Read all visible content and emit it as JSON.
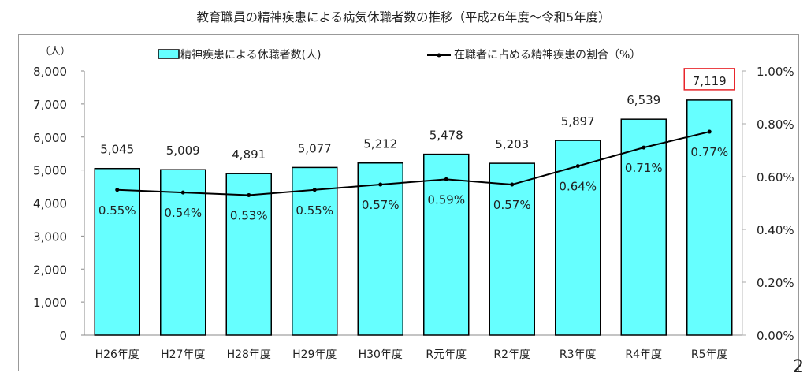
{
  "page_number": "2",
  "chart_data": {
    "type": "bar+line",
    "title": "教育職員の精神疾患による病気休職者数の推移（平成26年度～令和5年度）",
    "categories": [
      "H26年度",
      "H27年度",
      "H28年度",
      "H29年度",
      "H30年度",
      "R元年度",
      "R2年度",
      "R3年度",
      "R4年度",
      "R5年度"
    ],
    "series": [
      {
        "name": "精神疾患による休職者数(人)",
        "type": "bar",
        "axis": "left",
        "values": [
          5045,
          5009,
          4891,
          5077,
          5212,
          5478,
          5203,
          5897,
          6539,
          7119
        ],
        "labels": [
          "5,045",
          "5,009",
          "4,891",
          "5,077",
          "5,212",
          "5,478",
          "5,203",
          "5,897",
          "6,539",
          "7,119"
        ],
        "color": "#66FFFF",
        "highlight_index": 9,
        "highlight_color": "#E8252B"
      },
      {
        "name": "在職者に占める精神疾患の割合（%）",
        "type": "line",
        "axis": "right",
        "values": [
          0.55,
          0.54,
          0.53,
          0.55,
          0.57,
          0.59,
          0.57,
          0.64,
          0.71,
          0.77
        ],
        "labels": [
          "0.55%",
          "0.54%",
          "0.53%",
          "0.55%",
          "0.57%",
          "0.59%",
          "0.57%",
          "0.64%",
          "0.71%",
          "0.77%"
        ],
        "color": "#000000"
      }
    ],
    "ylabel": "（人）",
    "ylim": [
      0,
      8000
    ],
    "yticks": [
      "0",
      "1,000",
      "2,000",
      "3,000",
      "4,000",
      "5,000",
      "6,000",
      "7,000",
      "8,000"
    ],
    "y2lim": [
      0,
      1.0
    ],
    "y2ticks": [
      "0.00%",
      "0.20%",
      "0.40%",
      "0.60%",
      "0.80%",
      "1.00%"
    ],
    "legend_placement": "top",
    "grid": false
  }
}
